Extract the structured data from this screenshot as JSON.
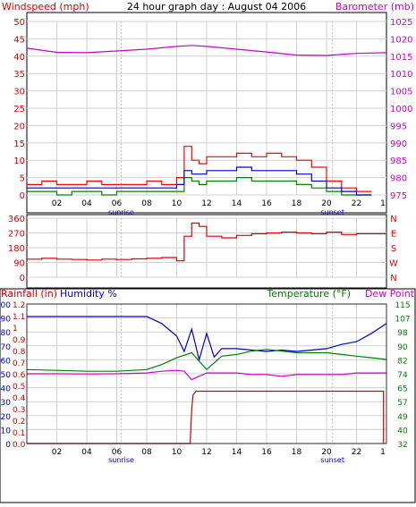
{
  "header": {
    "left_title": "Windspeed (mph)",
    "center_title": "24 hour graph day : August 04 2006",
    "right_title": "Barometer (mb)"
  },
  "x_axis": {
    "hour_ticks": [
      "02",
      "04",
      "06",
      "08",
      "10",
      "12",
      "14",
      "16",
      "18",
      "20",
      "22"
    ],
    "sunrise_label": "sunrise",
    "sunset_label": "sunset",
    "sunrise_hour": 6.3,
    "sunset_hour": 20.4
  },
  "panel_bottom_labels": {
    "rainfall": "Rainfall (in)",
    "humidity": "Humidity %",
    "temperature": "Temperature (°F)",
    "dew_point": "Dew Point"
  },
  "colors": {
    "wind_gust": "#ff0000",
    "wind_speed": "#0000cc",
    "wind_low": "#008000",
    "barometer": "#cc00cc",
    "direction": "#dd0000",
    "humidity": "#0000cc",
    "temperature": "#008000",
    "dew_point": "#cc00cc",
    "rainfall": "#cc0000"
  },
  "chart_data": [
    {
      "type": "line",
      "title": "24 hour graph day : August 04 2006",
      "ylabel": "Windspeed (mph)",
      "y2label": "Barometer (mb)",
      "x_range": [
        0,
        24
      ],
      "ylim": [
        0,
        50
      ],
      "y_ticks": [
        "0",
        "5",
        "10",
        "15",
        "20",
        "25",
        "30",
        "35",
        "40",
        "45",
        "50"
      ],
      "y2lim": [
        975,
        1025
      ],
      "y2_ticks": [
        "975",
        "980",
        "985",
        "990",
        "995",
        "1000",
        "1005",
        "1010",
        "1015",
        "1020",
        "1025"
      ],
      "series": [
        {
          "name": "Windspeed (mph)",
          "color": "#ff0000",
          "x": [
            0,
            1,
            2,
            3,
            4,
            5,
            6,
            7,
            8,
            9,
            10,
            10.5,
            11,
            11.5,
            12,
            13,
            14,
            15,
            16,
            17,
            18,
            19,
            20,
            21,
            22,
            23
          ],
          "y": [
            3,
            4,
            3,
            3,
            4,
            3,
            3,
            3,
            4,
            3,
            5,
            14,
            10,
            9,
            11,
            11,
            12,
            11,
            12,
            11,
            10,
            8,
            4,
            2,
            1,
            1
          ]
        },
        {
          "color": "#0000cc",
          "x": [
            0,
            1,
            2,
            3,
            4,
            5,
            6,
            7,
            8,
            9,
            10,
            10.5,
            11,
            11.5,
            12,
            13,
            14,
            15,
            16,
            17,
            18,
            19,
            20,
            21,
            22,
            23
          ],
          "y": [
            2,
            2,
            2,
            2,
            2,
            2,
            2,
            2,
            2,
            2,
            3,
            7,
            6,
            6,
            7,
            7,
            8,
            7,
            7,
            7,
            6,
            4,
            2,
            1,
            0,
            0
          ]
        },
        {
          "color": "#008000",
          "x": [
            0,
            1,
            2,
            3,
            4,
            5,
            6,
            7,
            8,
            9,
            10,
            10.5,
            11,
            11.5,
            12,
            13,
            14,
            15,
            16,
            17,
            18,
            19,
            20,
            21,
            22,
            23
          ],
          "y": [
            1,
            1,
            0,
            1,
            1,
            0,
            1,
            1,
            1,
            1,
            1,
            5,
            4,
            3,
            4,
            4,
            5,
            4,
            4,
            4,
            3,
            2,
            1,
            0,
            0,
            0
          ]
        },
        {
          "name": "Barometer (mb)",
          "color": "#cc00cc",
          "axis": "right",
          "x": [
            0,
            2,
            4,
            6,
            8,
            10,
            11,
            12,
            14,
            16,
            18,
            20,
            22,
            24
          ],
          "y": [
            1017.3,
            1016.1,
            1016.0,
            1016.5,
            1017.0,
            1017.8,
            1018.1,
            1017.8,
            1017.0,
            1016.2,
            1015.3,
            1015.2,
            1015.8,
            1016.0
          ]
        }
      ]
    },
    {
      "type": "line",
      "x_range": [
        0,
        24
      ],
      "ylim": [
        0,
        360
      ],
      "y_ticks": [
        "0",
        "90",
        "180",
        "270",
        "360"
      ],
      "y2_ticks": [
        "N",
        "W",
        "S",
        "E",
        "N"
      ],
      "series": [
        {
          "color": "#dd0000",
          "x": [
            0,
            1,
            2,
            3,
            4,
            5,
            6,
            7,
            8,
            9,
            10,
            10.5,
            11,
            11.5,
            12,
            13,
            14,
            15,
            16,
            17,
            18,
            19,
            20,
            21,
            22,
            23,
            24
          ],
          "y": [
            110,
            115,
            110,
            108,
            105,
            110,
            108,
            112,
            115,
            120,
            100,
            250,
            330,
            310,
            250,
            240,
            255,
            265,
            270,
            275,
            270,
            265,
            275,
            260,
            265,
            265,
            265
          ]
        }
      ]
    },
    {
      "type": "line",
      "x_range": [
        0,
        24
      ],
      "ylim": [
        0,
        100
      ],
      "y_ticks": [
        "0",
        "10",
        "20",
        "30",
        "40",
        "50",
        "60",
        "70",
        "80",
        "90",
        "100"
      ],
      "y_ticks_rain": [
        "0.0",
        "0.1",
        "0.2",
        "0.3",
        "0.4",
        "0.5",
        "0.6",
        "0.7",
        "0.8",
        "0.9",
        "1",
        "1.1",
        "1.2"
      ],
      "y2lim": [
        32,
        115
      ],
      "y2_ticks": [
        "32",
        "40",
        "49",
        "57",
        "65",
        "74",
        "82",
        "90",
        "98",
        "107",
        "115"
      ],
      "series": [
        {
          "name": "Humidity %",
          "color": "#0000cc",
          "x": [
            0,
            2,
            4,
            6,
            8,
            9,
            10,
            10.5,
            11,
            11.5,
            12,
            12.5,
            13,
            14,
            15,
            16,
            17,
            18,
            19,
            20,
            21,
            22,
            23,
            24
          ],
          "y": [
            91,
            91,
            91,
            91,
            91,
            86,
            77,
            66,
            82,
            60,
            79,
            62,
            68,
            68,
            67,
            66,
            67,
            66,
            67,
            68,
            71,
            73,
            79,
            86
          ]
        },
        {
          "name": "Temperature (°F)",
          "color": "#008000",
          "axis": "right",
          "x": [
            0,
            2,
            4,
            6,
            8,
            9,
            10,
            11,
            12,
            13,
            14,
            15,
            16,
            17,
            18,
            19,
            20,
            21,
            22,
            23,
            24
          ],
          "y": [
            76,
            75.5,
            75,
            75,
            76,
            79,
            83,
            86,
            76,
            84,
            85,
            87,
            88,
            87,
            86,
            86,
            86,
            85,
            84,
            83,
            82
          ]
        },
        {
          "name": "Dew Point",
          "color": "#cc00cc",
          "axis": "right",
          "x": [
            0,
            2,
            4,
            6,
            8,
            9,
            10,
            10.5,
            11,
            11.5,
            12,
            13,
            14,
            15,
            16,
            17,
            18,
            19,
            20,
            21,
            22,
            23,
            24
          ],
          "y": [
            73.5,
            73.5,
            73.4,
            73.5,
            74,
            75,
            75.5,
            75,
            70,
            72,
            74,
            74,
            74,
            73,
            73,
            72,
            73,
            73,
            73,
            73,
            74,
            74,
            74
          ]
        },
        {
          "name": "Rainfall (in)",
          "color": "#cc0000",
          "x": [
            0,
            6,
            10.9,
            11.0,
            11.1,
            11.3,
            12,
            16,
            20,
            23.8,
            23.8
          ],
          "y": [
            0,
            0,
            0,
            0.3,
            0.42,
            0.45,
            0.45,
            0.45,
            0.45,
            0.45,
            0
          ]
        }
      ]
    }
  ]
}
